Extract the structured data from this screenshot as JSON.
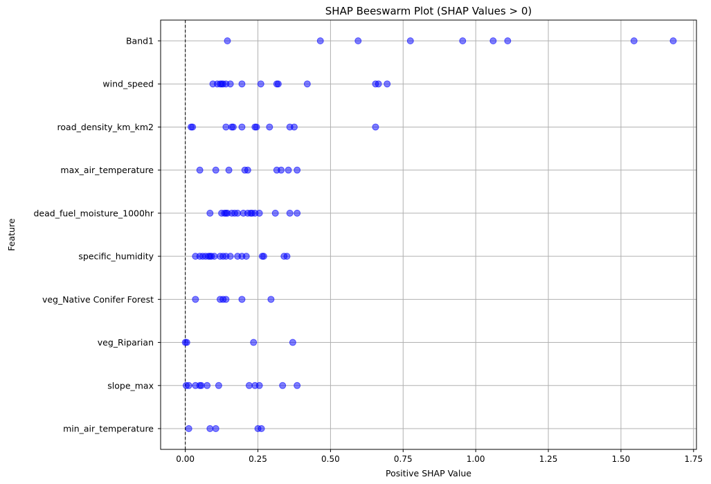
{
  "chart_data": {
    "type": "scatter",
    "title": "SHAP Beeswarm Plot (SHAP Values > 0)",
    "xlabel": "Positive SHAP Value",
    "ylabel": "Feature",
    "xlim": [
      -0.085,
      1.76
    ],
    "xticks": [
      0.0,
      0.25,
      0.5,
      0.75,
      1.0,
      1.25,
      1.5,
      1.75
    ],
    "xtick_labels": [
      "0.00",
      "0.25",
      "0.50",
      "0.75",
      "1.00",
      "1.25",
      "1.50",
      "1.75"
    ],
    "grid": true,
    "reference_line": {
      "x": 0,
      "style": "dashed",
      "color": "#000000"
    },
    "point_color": "#0000ff",
    "point_alpha": 0.5,
    "features": [
      {
        "name": "Band1",
        "values": [
          0.145,
          0.465,
          0.595,
          0.775,
          0.955,
          1.06,
          1.11,
          1.545,
          1.68
        ]
      },
      {
        "name": "wind_speed",
        "values": [
          0.095,
          0.11,
          0.12,
          0.125,
          0.13,
          0.14,
          0.155,
          0.195,
          0.26,
          0.315,
          0.32,
          0.42,
          0.655,
          0.665,
          0.695
        ]
      },
      {
        "name": "road_density_km_km2",
        "values": [
          0.02,
          0.025,
          0.14,
          0.16,
          0.165,
          0.195,
          0.24,
          0.245,
          0.29,
          0.36,
          0.375,
          0.655
        ]
      },
      {
        "name": "max_air_temperature",
        "values": [
          0.05,
          0.105,
          0.15,
          0.205,
          0.215,
          0.315,
          0.33,
          0.355,
          0.385
        ]
      },
      {
        "name": "dead_fuel_moisture_1000hr",
        "values": [
          0.085,
          0.125,
          0.135,
          0.14,
          0.145,
          0.16,
          0.17,
          0.18,
          0.2,
          0.215,
          0.225,
          0.23,
          0.24,
          0.255,
          0.31,
          0.36,
          0.385
        ]
      },
      {
        "name": "specific_humidity",
        "values": [
          0.035,
          0.05,
          0.06,
          0.07,
          0.08,
          0.085,
          0.09,
          0.1,
          0.12,
          0.13,
          0.14,
          0.155,
          0.18,
          0.195,
          0.21,
          0.265,
          0.27,
          0.34,
          0.35
        ]
      },
      {
        "name": "veg_Native Conifer Forest ",
        "values": [
          0.035,
          0.12,
          0.13,
          0.14,
          0.195,
          0.295
        ]
      },
      {
        "name": "veg_Riparian ",
        "values": [
          0.0,
          0.005,
          0.235,
          0.37
        ]
      },
      {
        "name": "slope_max",
        "values": [
          0.003,
          0.012,
          0.035,
          0.05,
          0.055,
          0.075,
          0.115,
          0.22,
          0.24,
          0.255,
          0.335,
          0.385
        ]
      },
      {
        "name": "min_air_temperature",
        "values": [
          0.012,
          0.085,
          0.105,
          0.25,
          0.262
        ]
      }
    ]
  }
}
